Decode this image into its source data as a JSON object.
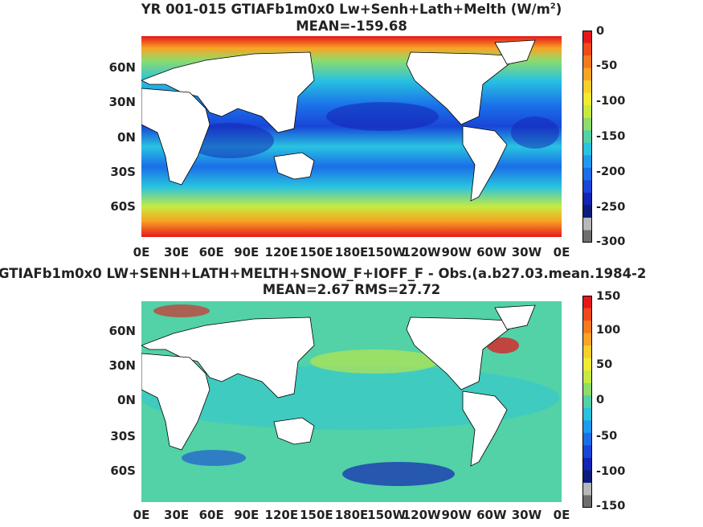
{
  "panels": [
    {
      "title_line1": "YR 001-015 GTIAFb1m0x0 Lw+Senh+Lath+Melth (W/m",
      "title_sup": "2",
      "title_close": ")",
      "title_line2": "MEAN=-159.68",
      "colorbar_labels": [
        "0",
        "-50",
        "-100",
        "-150",
        "-200",
        "-250",
        "-300"
      ],
      "colorbar_range": [
        -300,
        0
      ],
      "colors": [
        "#e6161c",
        "#f04a1b",
        "#f47a1d",
        "#f8a424",
        "#f7cf2a",
        "#f0ec31",
        "#c8ea3e",
        "#8fdc6b",
        "#52d2a6",
        "#28c3e0",
        "#1e9bee",
        "#1a6ee8",
        "#1946d8",
        "#1424b4",
        "#0b1c7a",
        "#b8b8b8",
        "#6e6e6e"
      ]
    },
    {
      "title_line1": "GTIAFb1m0x0 LW+SENH+LATH+MELTH+SNOW_F+IOFF_F - Obs.(a.b27.03.mean.1984-2",
      "title_line2": "MEAN=2.67 RMS=27.72",
      "colorbar_labels": [
        "150",
        "100",
        "50",
        "0",
        "-50",
        "-100",
        "-150"
      ],
      "colorbar_range": [
        -150,
        150
      ],
      "colors": [
        "#e6161c",
        "#f04a1b",
        "#f47a1d",
        "#f8a424",
        "#f7cf2a",
        "#f0ec31",
        "#c8ea3e",
        "#8fdc6b",
        "#52d2a6",
        "#28c3e0",
        "#1e9bee",
        "#1a6ee8",
        "#1946d8",
        "#1424b4",
        "#0b1c7a",
        "#b8b8b8",
        "#6e6e6e"
      ]
    }
  ],
  "lat_labels": [
    "60N",
    "30N",
    "0N",
    "30S",
    "60S"
  ],
  "lon_labels": [
    "0E",
    "30E",
    "60E",
    "90E",
    "120E",
    "150E",
    "180E",
    "150W",
    "120W",
    "90W",
    "60W",
    "30W",
    "0E"
  ]
}
